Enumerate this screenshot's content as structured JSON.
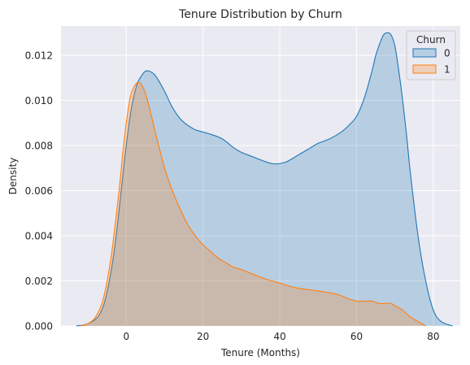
{
  "chart_data": {
    "type": "area",
    "title": "Tenure Distribution by Churn",
    "xlabel": "Tenure (Months)",
    "ylabel": "Density",
    "xlim": [
      -17,
      87
    ],
    "ylim": [
      0,
      0.0133
    ],
    "xticks": [
      "0",
      "20",
      "40",
      "60",
      "80"
    ],
    "yticks": [
      "0.000",
      "0.002",
      "0.004",
      "0.006",
      "0.008",
      "0.010",
      "0.012"
    ],
    "grid": true,
    "legend": {
      "title": "Churn",
      "position": "top-right"
    },
    "series": [
      {
        "name": "0",
        "color": "#1f77b4",
        "x": [
          -13,
          -10,
          -7,
          -5,
          -3,
          -1,
          0,
          1,
          2,
          3,
          4,
          5,
          6,
          7,
          8,
          10,
          12,
          14,
          16,
          18,
          20,
          22,
          25,
          28,
          30,
          33,
          36,
          38,
          40,
          42,
          45,
          48,
          50,
          53,
          56,
          58,
          60,
          62,
          64,
          65,
          66,
          67,
          68,
          69,
          70,
          71,
          72,
          73,
          74,
          76,
          78,
          80,
          82,
          85
        ],
        "y": [
          0.0,
          0.0001,
          0.0005,
          0.0015,
          0.0035,
          0.0065,
          0.008,
          0.0093,
          0.0102,
          0.0108,
          0.0111,
          0.0113,
          0.0113,
          0.0112,
          0.011,
          0.0104,
          0.0097,
          0.0092,
          0.0089,
          0.0087,
          0.0086,
          0.0085,
          0.0083,
          0.0079,
          0.0077,
          0.0075,
          0.0073,
          0.0072,
          0.0072,
          0.0073,
          0.0076,
          0.0079,
          0.0081,
          0.0083,
          0.0086,
          0.0089,
          0.0093,
          0.0101,
          0.0113,
          0.012,
          0.0125,
          0.0129,
          0.013,
          0.0129,
          0.0124,
          0.0113,
          0.01,
          0.0085,
          0.0068,
          0.004,
          0.002,
          0.0007,
          0.0002,
          0.0
        ]
      },
      {
        "name": "1",
        "color": "#ff7f0e",
        "x": [
          -12,
          -10,
          -8,
          -6,
          -4,
          -2,
          -1,
          0,
          1,
          2,
          3,
          4,
          5,
          6,
          7,
          8,
          10,
          12,
          14,
          16,
          18,
          20,
          22,
          24,
          26,
          28,
          30,
          33,
          36,
          40,
          44,
          48,
          52,
          55,
          58,
          60,
          62,
          64,
          66,
          68,
          69,
          70,
          72,
          74,
          76,
          78
        ],
        "y": [
          0.0,
          0.0001,
          0.0004,
          0.0012,
          0.003,
          0.0058,
          0.0075,
          0.009,
          0.0101,
          0.0106,
          0.0108,
          0.0107,
          0.0103,
          0.0097,
          0.009,
          0.0083,
          0.007,
          0.006,
          0.0052,
          0.0045,
          0.004,
          0.0036,
          0.0033,
          0.003,
          0.0028,
          0.0026,
          0.0025,
          0.0023,
          0.0021,
          0.0019,
          0.0017,
          0.0016,
          0.0015,
          0.0014,
          0.0012,
          0.0011,
          0.0011,
          0.0011,
          0.001,
          0.001,
          0.001,
          0.0009,
          0.0007,
          0.0004,
          0.0002,
          0.0
        ]
      }
    ]
  }
}
